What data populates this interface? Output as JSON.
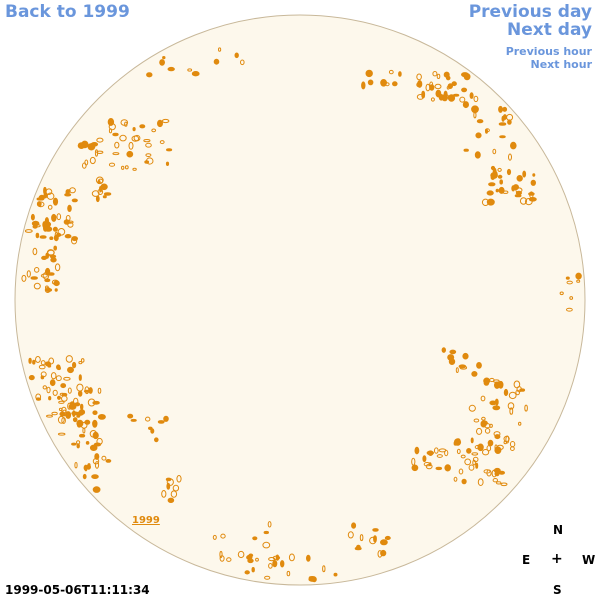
{
  "nav": {
    "back": "Back to 1999",
    "previous_day": "Previous day",
    "next_day": "Next day",
    "previous_hour": "Previous hour",
    "next_hour": "Next hour"
  },
  "map": {
    "year_link": "1999",
    "disk_fill": "#fdf8ec",
    "disk_stroke": "#c8b89a",
    "contour_color": "#e08a0e"
  },
  "compass": {
    "north": "N",
    "east": "E",
    "center": "+",
    "west": "W",
    "south": "S"
  },
  "timestamp": "1999-05-06T11:11:34"
}
